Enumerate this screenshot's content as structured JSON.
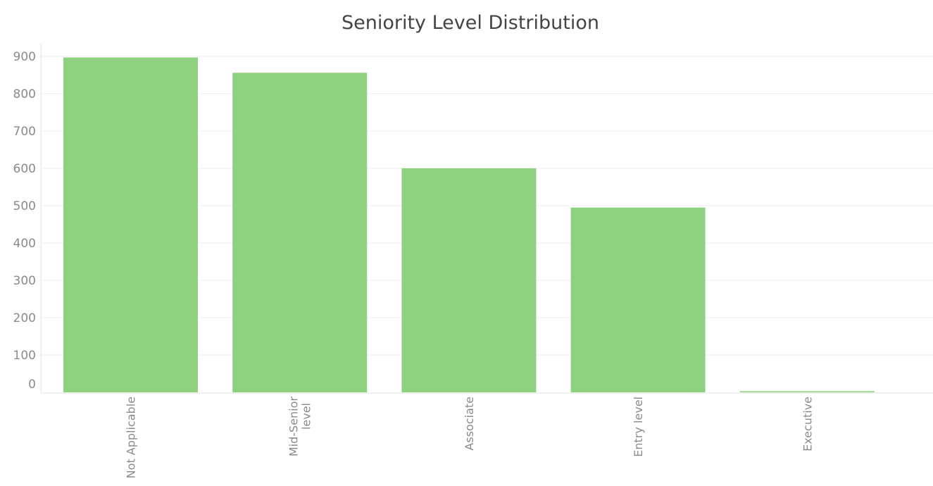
{
  "chart_data": {
    "type": "bar",
    "title": "Seniority Level Distribution",
    "xlabel": "",
    "ylabel": "",
    "categories": [
      "Not Applicable",
      "Mid-Senior level",
      "Associate",
      "Entry level",
      "Executive"
    ],
    "category_lines": [
      [
        "Not Applicable"
      ],
      [
        "Mid-Senior",
        "level"
      ],
      [
        "Associate"
      ],
      [
        "Entry level"
      ],
      [
        "Executive"
      ]
    ],
    "values": [
      897,
      856,
      600,
      495,
      3
    ],
    "ylim": [
      0,
      900
    ],
    "yticks": [
      0,
      100,
      200,
      300,
      400,
      500,
      600,
      700,
      800,
      900
    ],
    "grid": true,
    "bar_color": "#8dd17e"
  }
}
